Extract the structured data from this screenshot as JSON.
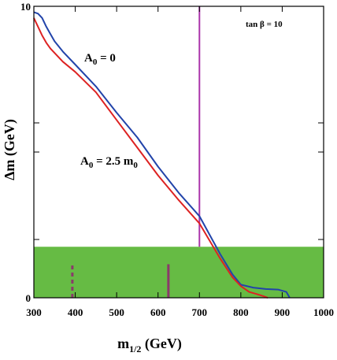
{
  "chart_data": {
    "type": "line",
    "xlabel_main": "m",
    "xlabel_sub": "1/2",
    "xlabel_unit": " (GeV)",
    "ylabel": "Δm (GeV)",
    "xlim": [
      300,
      1000
    ],
    "ylim": [
      0,
      10
    ],
    "xticks": [
      300,
      400,
      500,
      600,
      700,
      800,
      900,
      1000
    ],
    "yticks_labeled": [
      0,
      10
    ],
    "yticks_unlabeled": [
      2,
      5,
      6
    ],
    "annotation": "tan β = 10",
    "series": [
      {
        "name": "A0 = 0",
        "label_main": "A",
        "label_sub": "0",
        "label_rest": " = 0",
        "color": "#2244aa",
        "x": [
          300,
          310,
          320,
          330,
          340,
          350,
          370,
          400,
          450,
          500,
          550,
          600,
          650,
          700,
          750,
          780,
          800,
          830,
          860,
          890,
          910,
          918
        ],
        "y": [
          9.8,
          9.75,
          9.6,
          9.3,
          9.05,
          8.8,
          8.45,
          8.0,
          7.25,
          6.35,
          5.5,
          4.5,
          3.6,
          2.8,
          1.5,
          0.8,
          0.45,
          0.35,
          0.3,
          0.28,
          0.2,
          0.0
        ]
      },
      {
        "name": "A0 = 2.5 m0",
        "label_main": "A",
        "label_sub": "0",
        "label_rest": " = 2.5 m",
        "label_sub2": "0",
        "color": "#dd2222",
        "x": [
          300,
          310,
          320,
          330,
          340,
          350,
          370,
          400,
          450,
          500,
          550,
          600,
          650,
          700,
          750,
          780,
          800,
          820,
          840,
          855,
          865
        ],
        "y": [
          9.6,
          9.3,
          9.0,
          8.75,
          8.55,
          8.4,
          8.1,
          7.75,
          7.05,
          6.1,
          5.15,
          4.2,
          3.35,
          2.55,
          1.35,
          0.7,
          0.4,
          0.2,
          0.12,
          0.05,
          0.0
        ]
      }
    ],
    "bands": [
      {
        "name": "excluded region",
        "y_range": [
          0,
          1.75
        ],
        "color": "#66bb44"
      }
    ],
    "markers": [
      {
        "type": "vline",
        "x": 700,
        "y_range": [
          1.75,
          10
        ],
        "color": "#aa33aa"
      },
      {
        "type": "vline",
        "x": 625,
        "y_range": [
          0,
          1.15
        ],
        "color": "#8a3a6a"
      },
      {
        "type": "vline-dashed",
        "x": 393,
        "y_range": [
          0,
          1.2
        ],
        "color": "#8a3a6a"
      }
    ]
  }
}
